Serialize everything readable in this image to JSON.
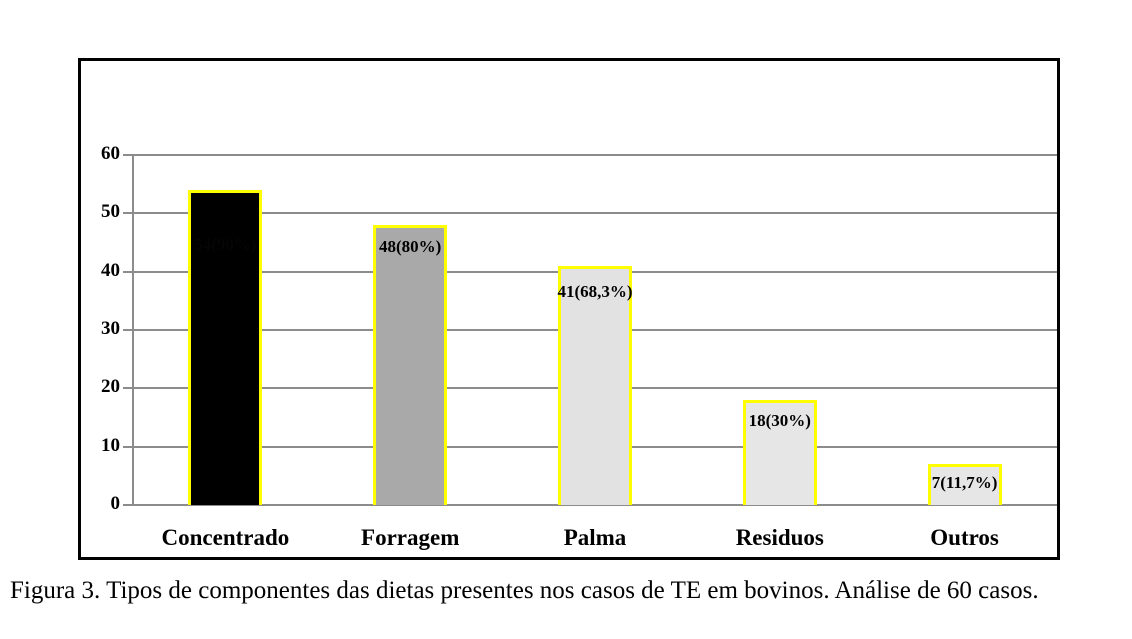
{
  "figure": {
    "caption": "Figura 3. Tipos de componentes das dietas presentes nos casos de TE em bovinos. Análise de 60 casos."
  },
  "chart_data": {
    "type": "bar",
    "categories": [
      "Concentrado",
      "Forragem",
      "Palma",
      "Residuos",
      "Outros"
    ],
    "values": [
      54,
      48,
      41,
      18,
      7
    ],
    "bar_labels": [
      "54(90%)",
      "48(80%)",
      "41(68,3%)",
      "18(30%)",
      "7(11,7%)"
    ],
    "bar_colors": [
      "#000000",
      "#a9a9a9",
      "#e2e2e2",
      "#e6e6e6",
      "#e6e6e6"
    ],
    "bar_label_colors": [
      "#050505",
      "#000000",
      "#000000",
      "#000000",
      "#000000"
    ],
    "bar_border_color": "#ffff00",
    "y_ticks": [
      0,
      10,
      20,
      30,
      40,
      50,
      60
    ],
    "ylim": [
      0,
      60
    ],
    "grid": true,
    "gridline_color": "#8c8c8c",
    "title": "",
    "xlabel": "",
    "ylabel": ""
  }
}
